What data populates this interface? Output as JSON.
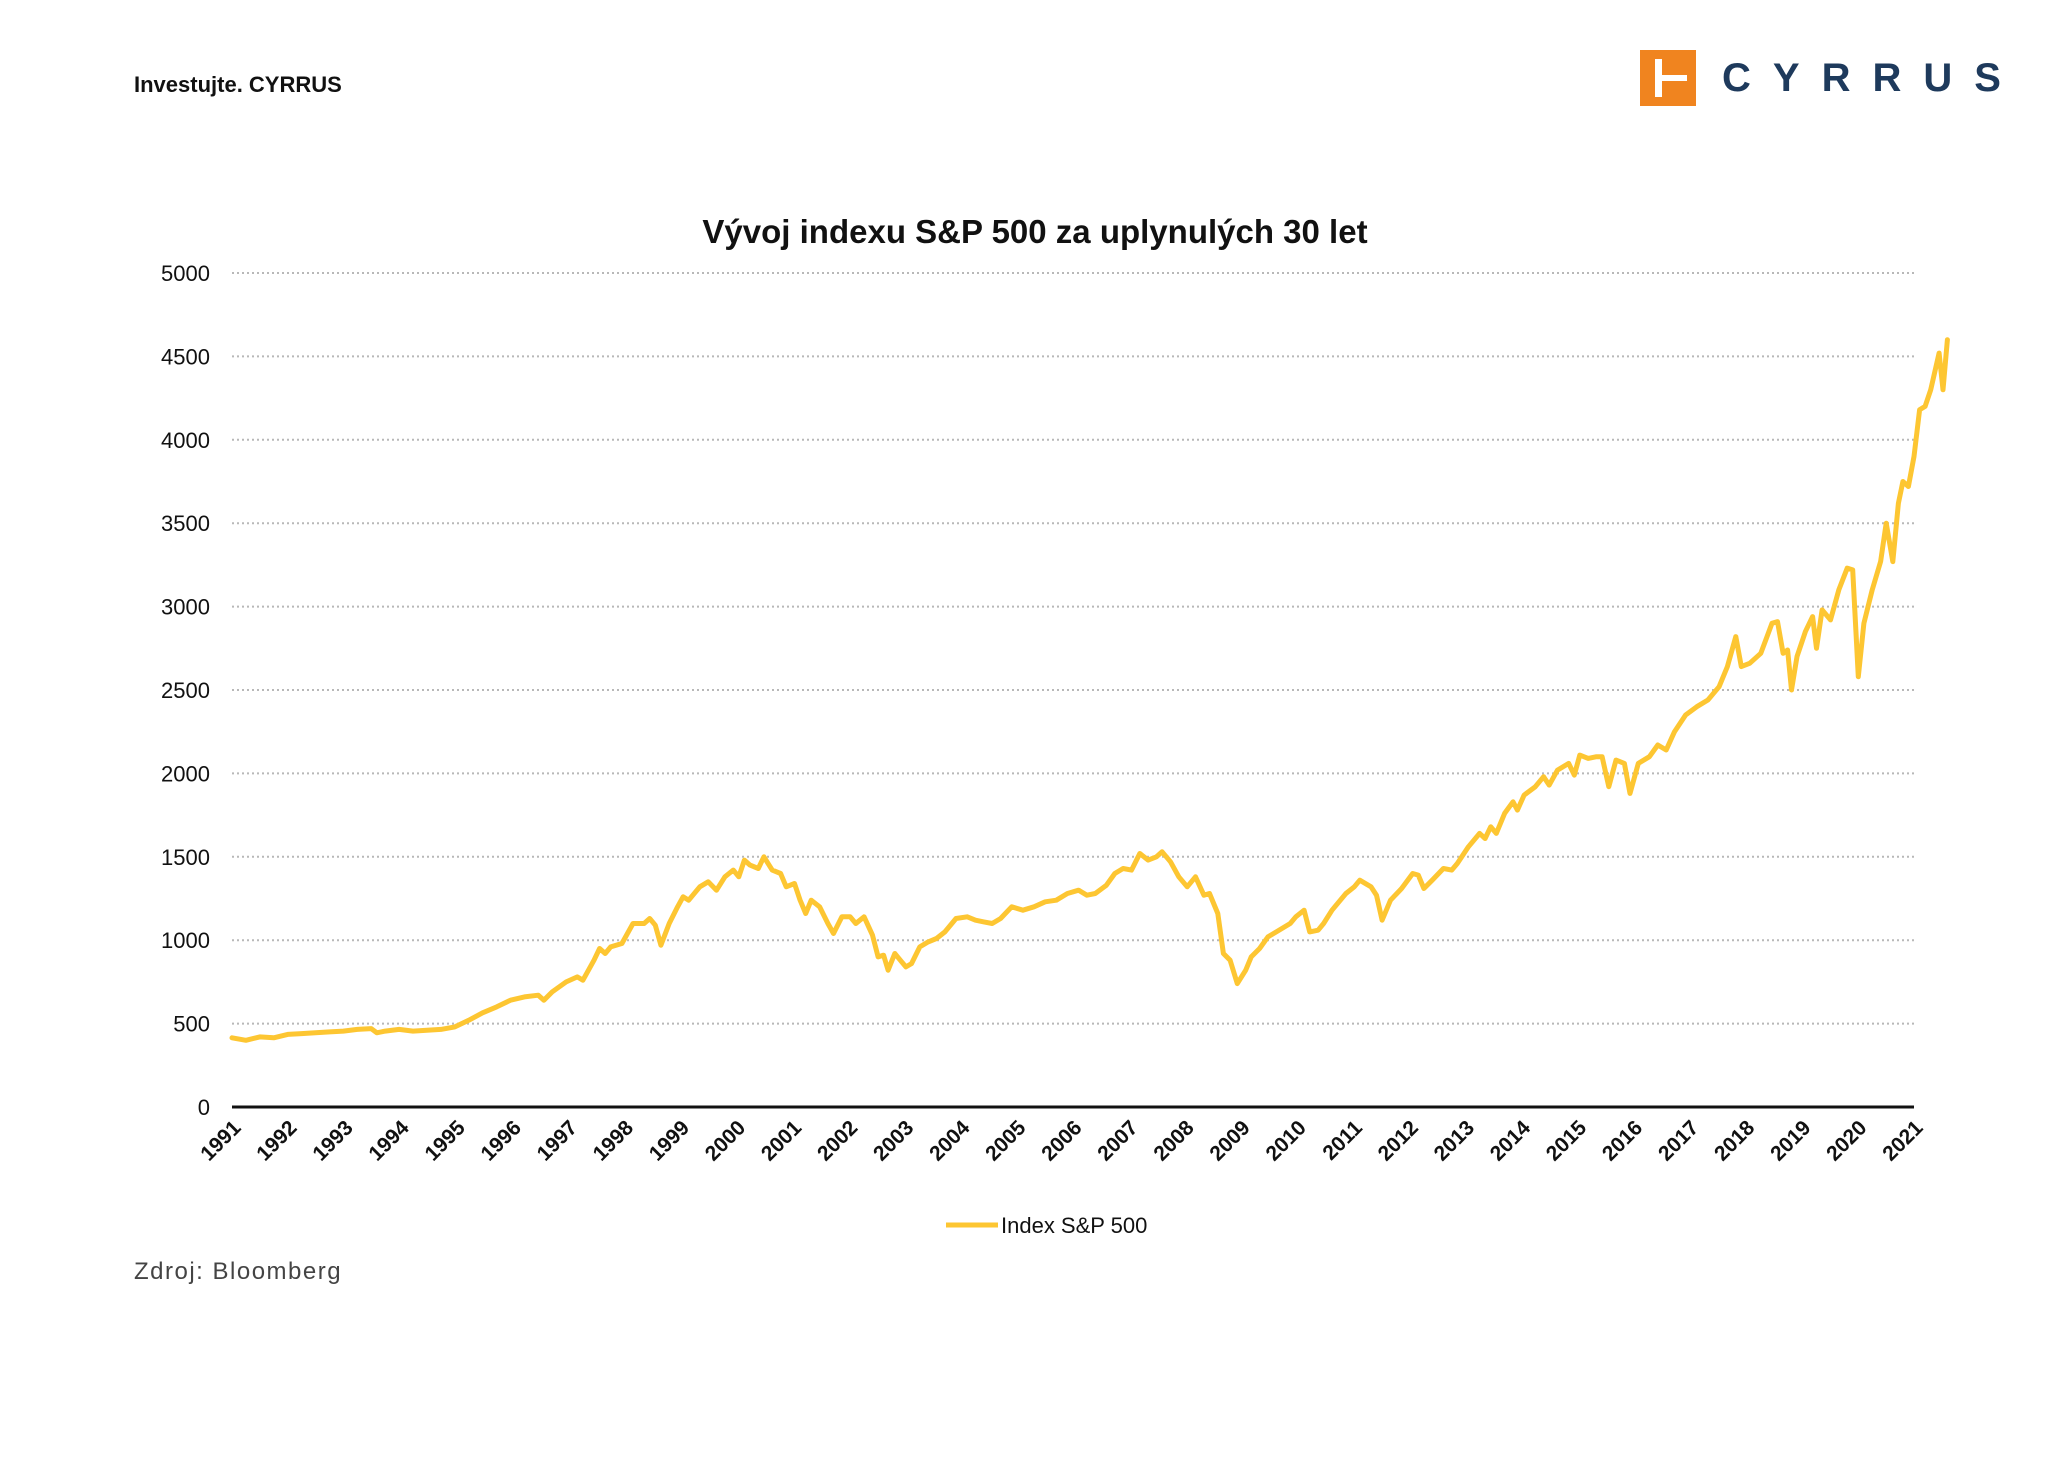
{
  "header": {
    "tagline": "Investujte. CYRRUS"
  },
  "logo": {
    "text": "CYRRUS",
    "color": "#1e3a5c",
    "mark_color": "#f0841f"
  },
  "source_note": "Zdroj: Bloomberg",
  "chart_data": {
    "type": "line",
    "title": "Vývoj indexu S&P 500 za uplynulých 30 let",
    "xlabel": "",
    "ylabel": "",
    "ylim": [
      0,
      5000
    ],
    "yticks": [
      0,
      500,
      1000,
      1500,
      2000,
      2500,
      3000,
      3500,
      4000,
      4500,
      5000
    ],
    "x_ticks": [
      "1991",
      "1992",
      "1993",
      "1994",
      "1995",
      "1996",
      "1997",
      "1998",
      "1999",
      "2000",
      "2001",
      "2002",
      "2003",
      "2004",
      "2005",
      "2006",
      "2007",
      "2008",
      "2009",
      "2010",
      "2011",
      "2012",
      "2013",
      "2014",
      "2015",
      "2016",
      "2017",
      "2018",
      "2019",
      "2020",
      "2021"
    ],
    "xlim": [
      1991,
      2021.2
    ],
    "grid": "horizontal dotted",
    "legend_position": "bottom-center",
    "series": [
      {
        "name": "Index S&P 500",
        "color": "#fdc632",
        "points": [
          [
            1991.0,
            415
          ],
          [
            1991.25,
            400
          ],
          [
            1991.5,
            420
          ],
          [
            1991.75,
            415
          ],
          [
            1992.0,
            435
          ],
          [
            1992.25,
            440
          ],
          [
            1992.5,
            445
          ],
          [
            1992.75,
            450
          ],
          [
            1993.0,
            455
          ],
          [
            1993.25,
            465
          ],
          [
            1993.5,
            470
          ],
          [
            1993.6,
            445
          ],
          [
            1993.75,
            455
          ],
          [
            1994.0,
            465
          ],
          [
            1994.25,
            455
          ],
          [
            1994.5,
            460
          ],
          [
            1994.75,
            465
          ],
          [
            1995.0,
            480
          ],
          [
            1995.25,
            520
          ],
          [
            1995.5,
            565
          ],
          [
            1995.75,
            600
          ],
          [
            1996.0,
            640
          ],
          [
            1996.25,
            660
          ],
          [
            1996.5,
            670
          ],
          [
            1996.6,
            640
          ],
          [
            1996.75,
            690
          ],
          [
            1997.0,
            750
          ],
          [
            1997.2,
            780
          ],
          [
            1997.3,
            760
          ],
          [
            1997.5,
            880
          ],
          [
            1997.6,
            950
          ],
          [
            1997.7,
            920
          ],
          [
            1997.8,
            960
          ],
          [
            1998.0,
            980
          ],
          [
            1998.2,
            1100
          ],
          [
            1998.4,
            1100
          ],
          [
            1998.5,
            1130
          ],
          [
            1998.6,
            1090
          ],
          [
            1998.7,
            970
          ],
          [
            1998.85,
            1100
          ],
          [
            1999.0,
            1200
          ],
          [
            1999.1,
            1260
          ],
          [
            1999.2,
            1240
          ],
          [
            1999.4,
            1320
          ],
          [
            1999.55,
            1350
          ],
          [
            1999.7,
            1300
          ],
          [
            1999.85,
            1380
          ],
          [
            2000.0,
            1420
          ],
          [
            2000.1,
            1380
          ],
          [
            2000.2,
            1480
          ],
          [
            2000.3,
            1450
          ],
          [
            2000.45,
            1430
          ],
          [
            2000.55,
            1500
          ],
          [
            2000.7,
            1420
          ],
          [
            2000.85,
            1400
          ],
          [
            2000.95,
            1320
          ],
          [
            2001.1,
            1340
          ],
          [
            2001.2,
            1240
          ],
          [
            2001.3,
            1160
          ],
          [
            2001.4,
            1240
          ],
          [
            2001.55,
            1200
          ],
          [
            2001.7,
            1100
          ],
          [
            2001.8,
            1040
          ],
          [
            2001.95,
            1140
          ],
          [
            2002.1,
            1140
          ],
          [
            2002.2,
            1100
          ],
          [
            2002.35,
            1140
          ],
          [
            2002.5,
            1030
          ],
          [
            2002.6,
            900
          ],
          [
            2002.7,
            910
          ],
          [
            2002.78,
            820
          ],
          [
            2002.9,
            920
          ],
          [
            2003.0,
            880
          ],
          [
            2003.1,
            840
          ],
          [
            2003.2,
            860
          ],
          [
            2003.35,
            960
          ],
          [
            2003.5,
            990
          ],
          [
            2003.65,
            1010
          ],
          [
            2003.8,
            1050
          ],
          [
            2004.0,
            1130
          ],
          [
            2004.2,
            1140
          ],
          [
            2004.35,
            1120
          ],
          [
            2004.5,
            1110
          ],
          [
            2004.65,
            1100
          ],
          [
            2004.8,
            1130
          ],
          [
            2005.0,
            1200
          ],
          [
            2005.2,
            1180
          ],
          [
            2005.4,
            1200
          ],
          [
            2005.6,
            1230
          ],
          [
            2005.8,
            1240
          ],
          [
            2006.0,
            1280
          ],
          [
            2006.2,
            1300
          ],
          [
            2006.35,
            1270
          ],
          [
            2006.5,
            1280
          ],
          [
            2006.7,
            1330
          ],
          [
            2006.85,
            1400
          ],
          [
            2007.0,
            1430
          ],
          [
            2007.15,
            1420
          ],
          [
            2007.3,
            1520
          ],
          [
            2007.45,
            1480
          ],
          [
            2007.6,
            1500
          ],
          [
            2007.7,
            1530
          ],
          [
            2007.85,
            1470
          ],
          [
            2008.0,
            1380
          ],
          [
            2008.15,
            1320
          ],
          [
            2008.3,
            1380
          ],
          [
            2008.45,
            1270
          ],
          [
            2008.55,
            1280
          ],
          [
            2008.7,
            1160
          ],
          [
            2008.8,
            920
          ],
          [
            2008.92,
            880
          ],
          [
            2009.05,
            740
          ],
          [
            2009.2,
            820
          ],
          [
            2009.3,
            900
          ],
          [
            2009.45,
            950
          ],
          [
            2009.6,
            1020
          ],
          [
            2009.75,
            1050
          ],
          [
            2010.0,
            1100
          ],
          [
            2010.1,
            1140
          ],
          [
            2010.25,
            1180
          ],
          [
            2010.35,
            1050
          ],
          [
            2010.5,
            1060
          ],
          [
            2010.6,
            1100
          ],
          [
            2010.75,
            1180
          ],
          [
            2011.0,
            1280
          ],
          [
            2011.15,
            1320
          ],
          [
            2011.25,
            1360
          ],
          [
            2011.45,
            1320
          ],
          [
            2011.55,
            1270
          ],
          [
            2011.65,
            1120
          ],
          [
            2011.8,
            1240
          ],
          [
            2012.0,
            1310
          ],
          [
            2012.2,
            1400
          ],
          [
            2012.3,
            1390
          ],
          [
            2012.4,
            1310
          ],
          [
            2012.55,
            1360
          ],
          [
            2012.75,
            1430
          ],
          [
            2012.9,
            1420
          ],
          [
            2013.0,
            1460
          ],
          [
            2013.2,
            1560
          ],
          [
            2013.4,
            1640
          ],
          [
            2013.5,
            1610
          ],
          [
            2013.6,
            1680
          ],
          [
            2013.7,
            1640
          ],
          [
            2013.85,
            1760
          ],
          [
            2014.0,
            1830
          ],
          [
            2014.08,
            1780
          ],
          [
            2014.2,
            1870
          ],
          [
            2014.4,
            1920
          ],
          [
            2014.55,
            1980
          ],
          [
            2014.65,
            1930
          ],
          [
            2014.8,
            2020
          ],
          [
            2015.0,
            2060
          ],
          [
            2015.1,
            1990
          ],
          [
            2015.2,
            2110
          ],
          [
            2015.35,
            2090
          ],
          [
            2015.5,
            2100
          ],
          [
            2015.6,
            2100
          ],
          [
            2015.72,
            1920
          ],
          [
            2015.85,
            2080
          ],
          [
            2016.0,
            2060
          ],
          [
            2016.1,
            1880
          ],
          [
            2016.25,
            2060
          ],
          [
            2016.45,
            2100
          ],
          [
            2016.6,
            2170
          ],
          [
            2016.75,
            2140
          ],
          [
            2016.9,
            2250
          ],
          [
            2017.1,
            2350
          ],
          [
            2017.3,
            2400
          ],
          [
            2017.5,
            2440
          ],
          [
            2017.7,
            2520
          ],
          [
            2017.85,
            2640
          ],
          [
            2018.0,
            2820
          ],
          [
            2018.1,
            2640
          ],
          [
            2018.25,
            2660
          ],
          [
            2018.45,
            2720
          ],
          [
            2018.65,
            2900
          ],
          [
            2018.75,
            2910
          ],
          [
            2018.85,
            2720
          ],
          [
            2018.93,
            2740
          ],
          [
            2019.0,
            2500
          ],
          [
            2019.1,
            2700
          ],
          [
            2019.25,
            2850
          ],
          [
            2019.38,
            2940
          ],
          [
            2019.45,
            2750
          ],
          [
            2019.55,
            2980
          ],
          [
            2019.7,
            2920
          ],
          [
            2019.85,
            3100
          ],
          [
            2020.0,
            3230
          ],
          [
            2020.1,
            3220
          ],
          [
            2020.2,
            2580
          ],
          [
            2020.3,
            2900
          ],
          [
            2020.45,
            3100
          ],
          [
            2020.6,
            3270
          ],
          [
            2020.7,
            3500
          ],
          [
            2020.82,
            3270
          ],
          [
            2020.92,
            3620
          ],
          [
            2021.0,
            3750
          ],
          [
            2021.1,
            3720
          ],
          [
            2021.2,
            3900
          ],
          [
            2021.3,
            4180
          ],
          [
            2021.4,
            4200
          ],
          [
            2021.5,
            4300
          ],
          [
            2021.65,
            4520
          ],
          [
            2021.72,
            4300
          ],
          [
            2021.8,
            4600
          ]
        ]
      }
    ]
  }
}
